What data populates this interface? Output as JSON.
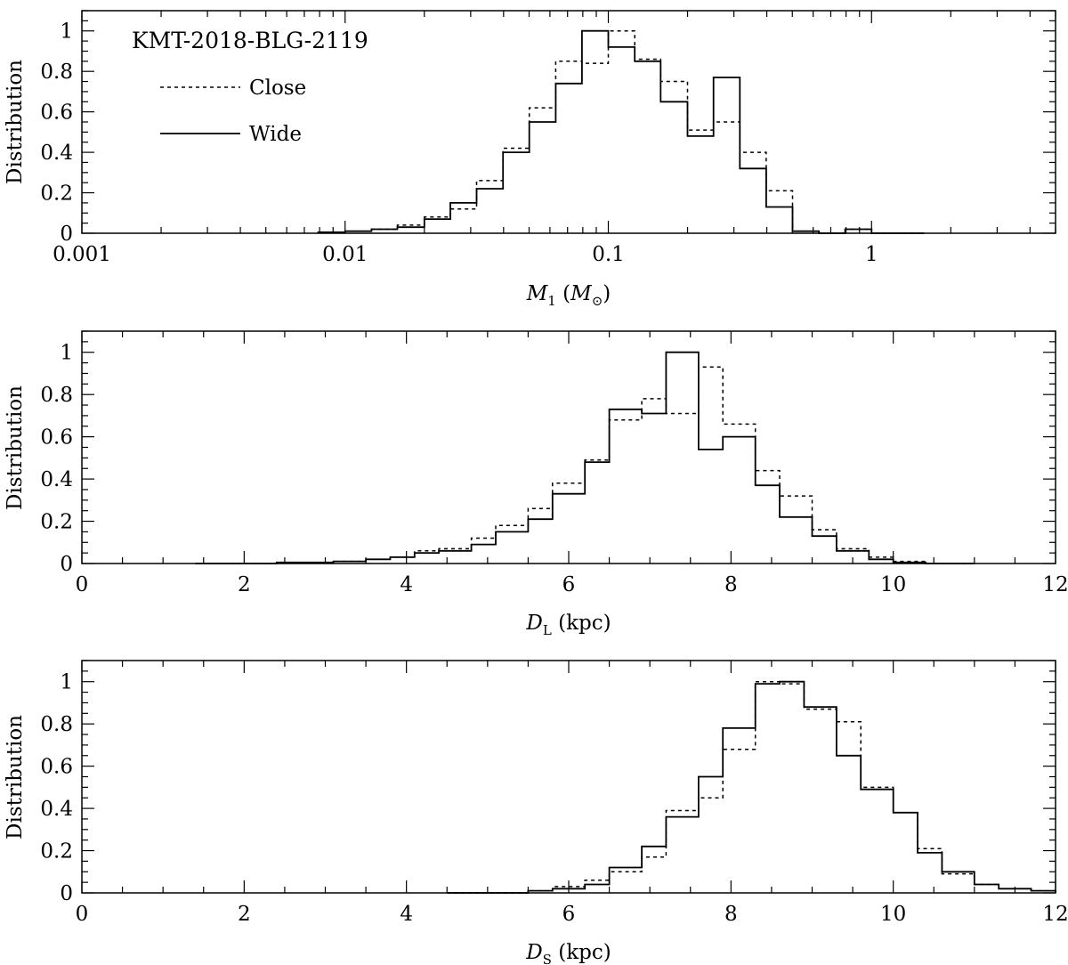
{
  "chart_data": [
    {
      "type": "histogram",
      "title": "KMT-2018-BLG-2119",
      "xscale": "log",
      "xlim": [
        0.001,
        5
      ],
      "ylim": [
        0,
        1.1
      ],
      "ylabel": "Distribution",
      "xlabel": {
        "symbol": "M",
        "sub": "1",
        "unit_open": "(",
        "unit_symbol": "M",
        "unit_sub": "⊙",
        "unit_close": ")"
      },
      "xticks": [
        0.001,
        0.01,
        0.1,
        1
      ],
      "xtick_labels": [
        "0.001",
        "0.01",
        "0.1",
        "1"
      ],
      "yticks": [
        0,
        0.2,
        0.4,
        0.6,
        0.8,
        1
      ],
      "ytick_labels": [
        "0",
        "0.2",
        "0.4",
        "0.6",
        "0.8",
        "1"
      ],
      "legend": {
        "position": "top-left",
        "close_label": "Close",
        "wide_label": "Wide"
      },
      "edges": [
        0.0079,
        0.01,
        0.0126,
        0.0158,
        0.02,
        0.0251,
        0.0316,
        0.0398,
        0.0501,
        0.0631,
        0.0794,
        0.1,
        0.126,
        0.158,
        0.2,
        0.251,
        0.316,
        0.398,
        0.501,
        0.631,
        0.794,
        1.0,
        1.259,
        1.585
      ],
      "series": [
        {
          "name": "Wide",
          "style": "solid",
          "values": [
            0.005,
            0.01,
            0.02,
            0.03,
            0.07,
            0.15,
            0.22,
            0.4,
            0.55,
            0.74,
            1.0,
            0.92,
            0.85,
            0.65,
            0.48,
            0.77,
            0.32,
            0.13,
            0.01,
            0.0,
            0.02,
            0.0,
            0.0
          ]
        },
        {
          "name": "Close",
          "style": "dashed",
          "values": [
            0.005,
            0.01,
            0.02,
            0.04,
            0.08,
            0.12,
            0.26,
            0.42,
            0.62,
            0.85,
            0.84,
            1.0,
            0.86,
            0.75,
            0.51,
            0.55,
            0.4,
            0.21,
            0.01,
            0.0,
            0.02,
            0.0,
            0.0
          ]
        }
      ]
    },
    {
      "type": "histogram",
      "xscale": "linear",
      "xlim": [
        0,
        12
      ],
      "ylim": [
        0,
        1.1
      ],
      "ylabel": "Distribution",
      "xlabel": {
        "symbol": "D",
        "sub": "L",
        "unit": "(kpc)"
      },
      "xticks": [
        0,
        2,
        4,
        6,
        8,
        10,
        12
      ],
      "xtick_labels": [
        "0",
        "2",
        "4",
        "6",
        "8",
        "10",
        "12"
      ],
      "yticks": [
        0,
        0.2,
        0.4,
        0.6,
        0.8,
        1
      ],
      "ytick_labels": [
        "0",
        "0.2",
        "0.4",
        "0.6",
        "0.8",
        "1"
      ],
      "edges": [
        1.4,
        2.4,
        3.1,
        3.5,
        3.8,
        4.1,
        4.4,
        4.8,
        5.1,
        5.5,
        5.8,
        6.2,
        6.5,
        6.9,
        7.2,
        7.6,
        7.9,
        8.3,
        8.6,
        9.0,
        9.3,
        9.7,
        10.0,
        10.4,
        11.0
      ],
      "series": [
        {
          "name": "Wide",
          "style": "solid",
          "values": [
            0.0,
            0.005,
            0.01,
            0.02,
            0.03,
            0.05,
            0.06,
            0.09,
            0.15,
            0.21,
            0.33,
            0.48,
            0.73,
            0.71,
            1.0,
            0.54,
            0.6,
            0.37,
            0.22,
            0.13,
            0.06,
            0.02,
            0.005,
            0.0
          ]
        },
        {
          "name": "Close",
          "style": "dashed",
          "values": [
            0.0,
            0.005,
            0.01,
            0.02,
            0.03,
            0.06,
            0.07,
            0.12,
            0.18,
            0.26,
            0.38,
            0.49,
            0.68,
            0.78,
            0.71,
            0.93,
            0.66,
            0.44,
            0.32,
            0.16,
            0.07,
            0.03,
            0.01,
            0.0
          ]
        }
      ]
    },
    {
      "type": "histogram",
      "xscale": "linear",
      "xlim": [
        0,
        12
      ],
      "ylim": [
        0,
        1.1
      ],
      "ylabel": "Distribution",
      "xlabel": {
        "symbol": "D",
        "sub": "S",
        "unit": "(kpc)"
      },
      "xticks": [
        0,
        2,
        4,
        6,
        8,
        10,
        12
      ],
      "xtick_labels": [
        "0",
        "2",
        "4",
        "6",
        "8",
        "10",
        "12"
      ],
      "yticks": [
        0,
        0.2,
        0.4,
        0.6,
        0.8,
        1
      ],
      "ytick_labels": [
        "0",
        "0.2",
        "0.4",
        "0.6",
        "0.8",
        "1"
      ],
      "edges": [
        4.5,
        5.5,
        5.8,
        6.2,
        6.5,
        6.9,
        7.2,
        7.6,
        7.9,
        8.3,
        8.6,
        8.9,
        9.3,
        9.6,
        10.0,
        10.3,
        10.6,
        11.0,
        11.3,
        11.7,
        12.0
      ],
      "series": [
        {
          "name": "Wide",
          "style": "solid",
          "values": [
            0.0,
            0.01,
            0.02,
            0.04,
            0.12,
            0.22,
            0.36,
            0.55,
            0.78,
            0.99,
            1.0,
            0.88,
            0.65,
            0.49,
            0.38,
            0.19,
            0.1,
            0.04,
            0.02,
            0.01
          ]
        },
        {
          "name": "Close",
          "style": "dashed",
          "values": [
            0.0,
            0.01,
            0.03,
            0.06,
            0.1,
            0.17,
            0.39,
            0.45,
            0.68,
            1.0,
            0.99,
            0.87,
            0.81,
            0.5,
            0.38,
            0.21,
            0.09,
            0.04,
            0.02,
            0.01
          ]
        }
      ]
    }
  ]
}
